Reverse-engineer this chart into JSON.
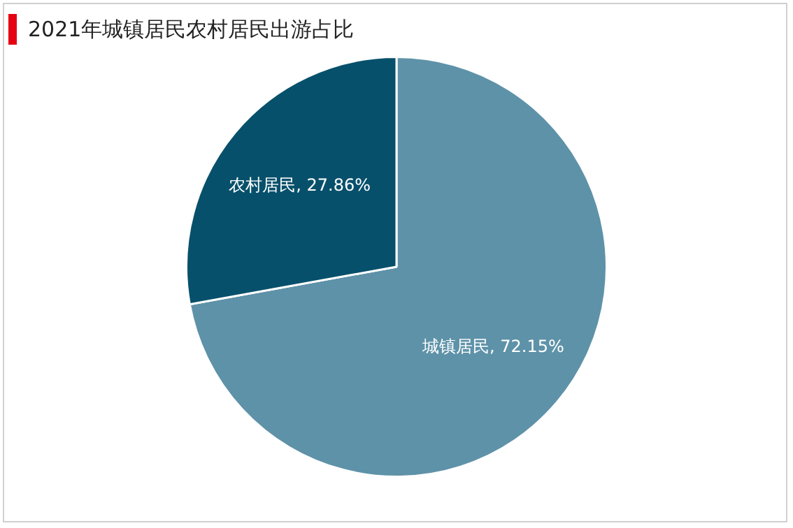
{
  "chart_data": {
    "type": "pie",
    "title": "2021年城镇居民农村居民出游占比",
    "categories": [
      "城镇居民",
      "农村居民"
    ],
    "values": [
      72.15,
      27.86
    ],
    "colors": [
      "#5e92a8",
      "#07506b"
    ],
    "value_labels": [
      "72.15%",
      "27.86%"
    ],
    "legend": false
  }
}
